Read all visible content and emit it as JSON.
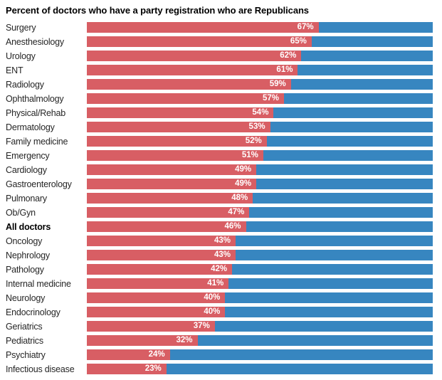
{
  "title": "Percent of doctors who have a party registration who are Republicans",
  "colors": {
    "republican_red": "#d85e64",
    "democrat_blue": "#3786c0",
    "title_text": "#000000",
    "category_text": "#262626",
    "value_text": "#ffffff",
    "background": "#ffffff"
  },
  "chart_data": {
    "type": "bar",
    "orientation": "horizontal",
    "stacked": true,
    "title": "Percent of doctors who have a party registration who are Republicans",
    "xlabel": "",
    "ylabel": "",
    "xlim": [
      0,
      100
    ],
    "grid": false,
    "legend": "none",
    "value_suffix": "%",
    "categories": [
      "Surgery",
      "Anesthesiology",
      "Urology",
      "ENT",
      "Radiology",
      "Ophthalmology",
      "Physical/Rehab",
      "Dermatology",
      "Family medicine",
      "Emergency",
      "Cardiology",
      "Gastroenterology",
      "Pulmonary",
      "Ob/Gyn",
      "All doctors",
      "Oncology",
      "Nephrology",
      "Pathology",
      "Internal medicine",
      "Neurology",
      "Endocrinology",
      "Geriatrics",
      "Pediatrics",
      "Psychiatry",
      "Infectious disease"
    ],
    "series": [
      {
        "name": "Republican",
        "color": "#d85e64",
        "values": [
          67,
          65,
          62,
          61,
          59,
          57,
          54,
          53,
          52,
          51,
          49,
          49,
          48,
          47,
          46,
          43,
          43,
          42,
          41,
          40,
          40,
          37,
          32,
          24,
          23
        ]
      },
      {
        "name": "Remainder",
        "color": "#3786c0",
        "values": [
          33,
          35,
          38,
          39,
          41,
          43,
          46,
          47,
          48,
          49,
          51,
          51,
          52,
          53,
          54,
          57,
          57,
          58,
          59,
          60,
          60,
          63,
          68,
          76,
          77
        ]
      }
    ],
    "value_labels": [
      "67%",
      "65%",
      "62%",
      "61%",
      "59%",
      "57%",
      "54%",
      "53%",
      "52%",
      "51%",
      "49%",
      "49%",
      "48%",
      "47%",
      "46%",
      "43%",
      "43%",
      "42%",
      "41%",
      "40%",
      "40%",
      "37%",
      "32%",
      "24%",
      "23%"
    ],
    "bold_category": "All doctors"
  }
}
